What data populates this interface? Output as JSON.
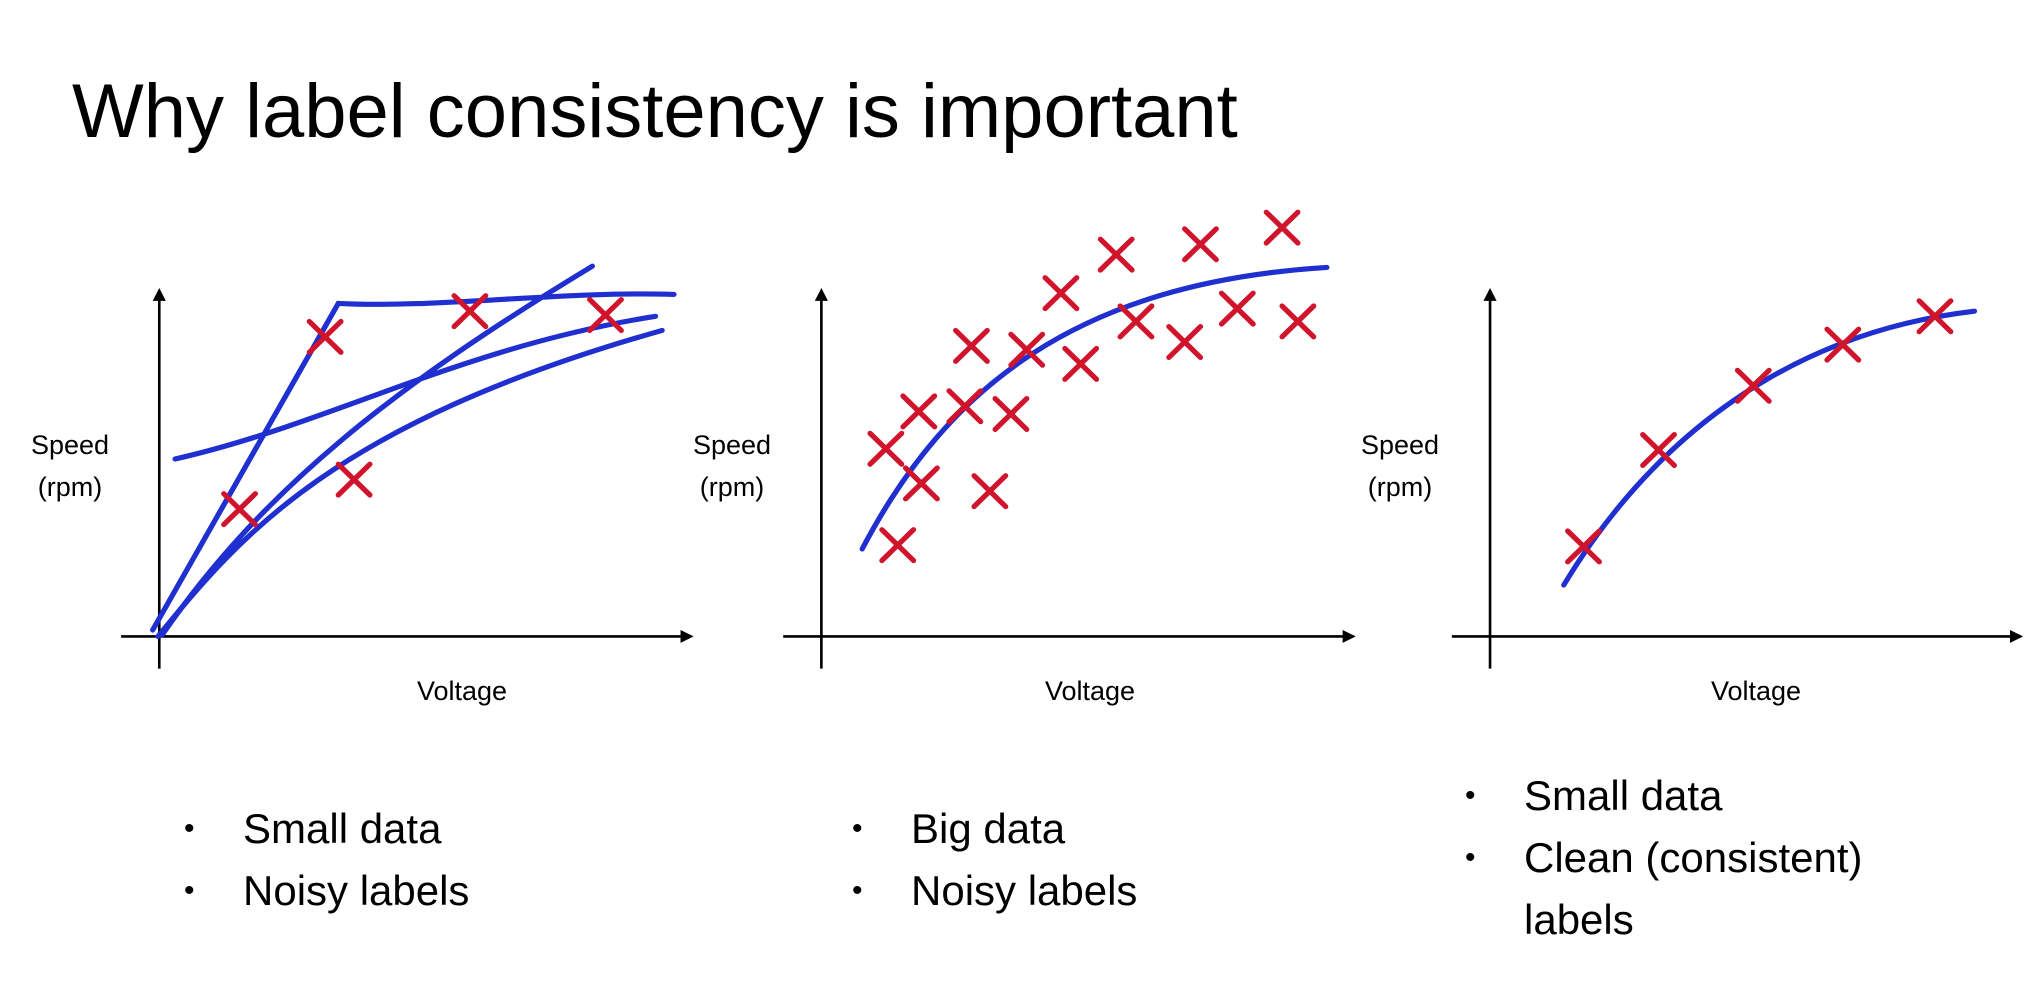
{
  "title": "Why label consistency is important",
  "panels": [
    {
      "y_label": [
        "Speed",
        "(rpm)"
      ],
      "x_label": "Voltage",
      "bullets": [
        "Small data",
        "Noisy labels"
      ]
    },
    {
      "y_label": [
        "Speed",
        "(rpm)"
      ],
      "x_label": "Voltage",
      "bullets": [
        "Big data",
        "Noisy labels"
      ]
    },
    {
      "y_label": [
        "Speed",
        "(rpm)"
      ],
      "x_label": "Voltage",
      "bullets": [
        "Small data",
        "Clean (consistent) labels"
      ]
    }
  ]
}
